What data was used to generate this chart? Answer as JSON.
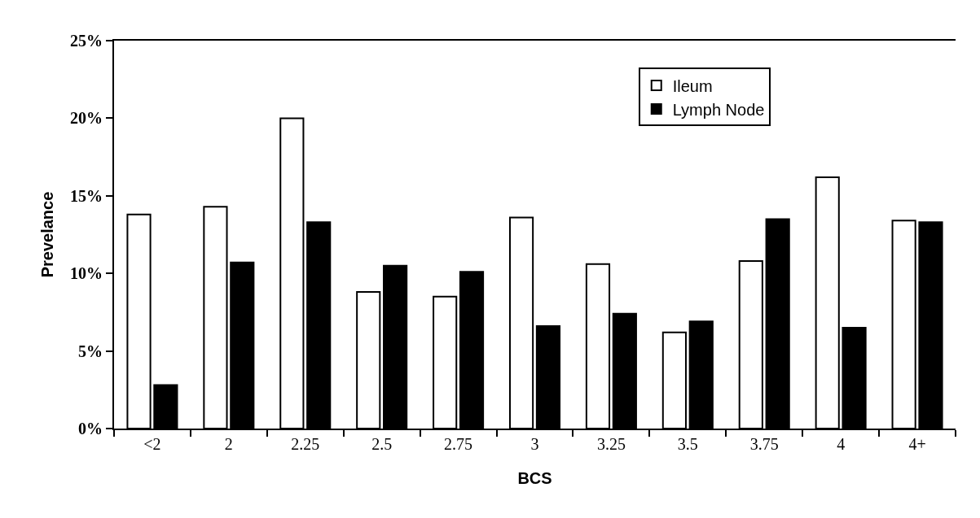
{
  "chart_data": {
    "type": "bar",
    "xlabel": "BCS",
    "ylabel": "Prevelance",
    "categories": [
      "<2",
      "2",
      "2.25",
      "2.5",
      "2.75",
      "3",
      "3.25",
      "3.5",
      "3.75",
      "4",
      "4+"
    ],
    "series": [
      {
        "name": "Ileum",
        "color": "#ffffff",
        "values": [
          13.8,
          14.3,
          20.0,
          8.8,
          8.5,
          13.6,
          10.6,
          6.2,
          10.8,
          16.2,
          13.4
        ]
      },
      {
        "name": "Lymph Node",
        "color": "#000000",
        "values": [
          2.8,
          10.7,
          13.3,
          10.5,
          10.1,
          6.6,
          7.4,
          6.9,
          13.5,
          6.5,
          13.3
        ]
      }
    ],
    "ylim": [
      0,
      25
    ],
    "yticks": [
      {
        "value": 0,
        "label": "0%"
      },
      {
        "value": 5,
        "label": "5%"
      },
      {
        "value": 10,
        "label": "10%"
      },
      {
        "value": 15,
        "label": "15%"
      },
      {
        "value": 20,
        "label": "20%"
      },
      {
        "value": 25,
        "label": "25%"
      }
    ],
    "grid": false,
    "legend": "top right"
  }
}
